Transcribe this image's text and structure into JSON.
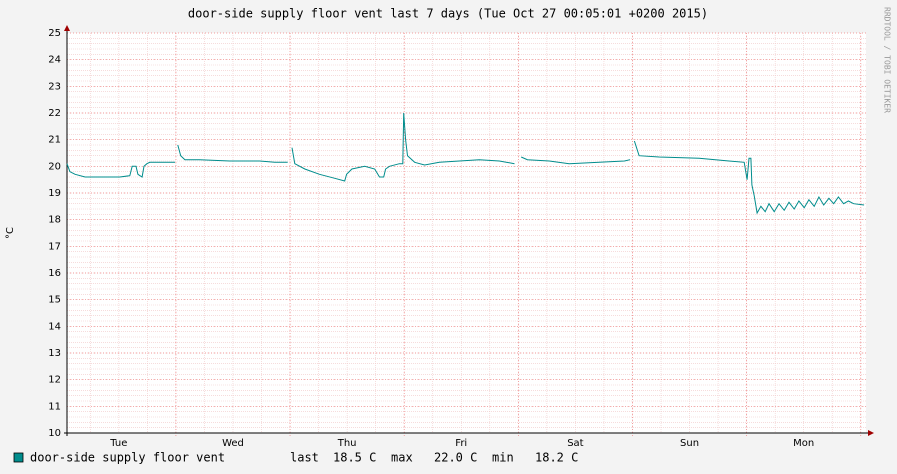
{
  "chart_data": {
    "type": "line",
    "title": "door-side supply floor vent last 7 days (Tue Oct 27 00:05:01 +0200 2015)",
    "ylabel": "°C",
    "watermark": "RRDTOOL / TOBI OETIKER",
    "xlim": [
      1.1,
      169.1
    ],
    "ylim": [
      10,
      25
    ],
    "yticks": [
      10,
      11,
      12,
      13,
      14,
      15,
      16,
      17,
      18,
      19,
      20,
      21,
      22,
      23,
      24,
      25
    ],
    "xticks": [
      {
        "value": 12,
        "label": "Tue"
      },
      {
        "value": 36,
        "label": "Wed"
      },
      {
        "value": 60,
        "label": "Thu"
      },
      {
        "value": 84,
        "label": "Fri"
      },
      {
        "value": 108,
        "label": "Sat"
      },
      {
        "value": 132,
        "label": "Sun"
      },
      {
        "value": 156,
        "label": "Mon"
      }
    ],
    "xgrid": [
      24,
      48,
      72,
      96,
      120,
      144,
      168
    ],
    "minor_xstep": 6,
    "minor_ystep": 0.2,
    "grid": true,
    "x": [
      1.1,
      1.7,
      2.8,
      4.9,
      8.0,
      12.2,
      14.3,
      14.8,
      15.6,
      16.0,
      16.9,
      17.3,
      17.9,
      18.5,
      23.8,
      24.1,
      24.4,
      25.0,
      25.9,
      29.0,
      35.3,
      41.6,
      44.8,
      47.5,
      47.9,
      48.4,
      49.0,
      51.1,
      54.2,
      57.4,
      59.5,
      59.9,
      61.0,
      63.7,
      65.8,
      66.8,
      67.7,
      68.1,
      68.9,
      71.0,
      71.7,
      71.9,
      72.3,
      72.7,
      74.2,
      76.3,
      79.4,
      83.6,
      87.8,
      92.0,
      95.2,
      95.8,
      96.6,
      97.9,
      102.5,
      106.7,
      113.0,
      118.3,
      119.5,
      119.9,
      120.4,
      121.4,
      125.6,
      134.0,
      140.3,
      143.5,
      144.1,
      144.5,
      144.9,
      145.1,
      145.6,
      146.2,
      147.0,
      147.9,
      148.7,
      149.8,
      150.8,
      151.9,
      152.9,
      154.0,
      155.0,
      156.1,
      157.1,
      158.2,
      159.2,
      160.2,
      161.3,
      162.3,
      163.3,
      164.4,
      165.4,
      166.5,
      168.7
    ],
    "series": [
      {
        "name": "door-side supply floor vent",
        "color": "#008c8c",
        "values": [
          20.1,
          19.8,
          19.7,
          19.6,
          19.6,
          19.6,
          19.65,
          20.0,
          20.0,
          19.7,
          19.6,
          20.0,
          20.1,
          20.15,
          20.15,
          null,
          20.8,
          20.4,
          20.25,
          20.25,
          20.2,
          20.2,
          20.15,
          20.15,
          null,
          20.7,
          20.1,
          19.9,
          19.7,
          19.55,
          19.45,
          19.7,
          19.9,
          20.0,
          19.9,
          19.6,
          19.6,
          19.9,
          20.0,
          20.1,
          20.1,
          22.0,
          21.0,
          20.4,
          20.15,
          20.05,
          20.15,
          20.2,
          20.25,
          20.2,
          20.1,
          null,
          20.35,
          20.25,
          20.2,
          20.1,
          20.15,
          20.2,
          20.25,
          null,
          20.95,
          20.4,
          20.35,
          20.3,
          20.2,
          20.15,
          19.5,
          20.3,
          20.3,
          19.3,
          18.9,
          18.25,
          18.5,
          18.3,
          18.6,
          18.3,
          18.6,
          18.35,
          18.65,
          18.4,
          18.7,
          18.45,
          18.75,
          18.5,
          18.85,
          18.55,
          18.8,
          18.6,
          18.85,
          18.6,
          18.7,
          18.6,
          18.55
        ]
      }
    ],
    "legend_stats": [
      {
        "label": "last",
        "text": "18.5 C"
      },
      {
        "label": "max",
        "text": "22.0 C"
      },
      {
        "label": "min",
        "text": "18.2 C"
      }
    ]
  }
}
